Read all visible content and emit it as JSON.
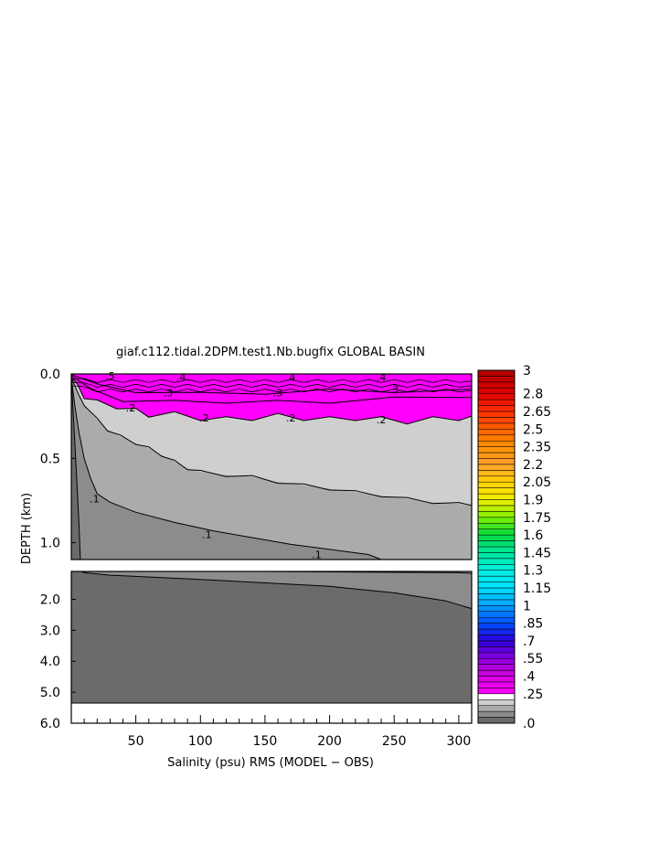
{
  "chart_data": {
    "type": "contour",
    "title": "giaf.c112.tidal.2DPM.test1.Nb.bugfix GLOBAL BASIN",
    "xlabel": "Salinity (psu) RMS (MODEL − OBS)",
    "ylabel": "DEPTH (km)",
    "xlim": [
      0,
      310
    ],
    "x_ticks": [
      50,
      100,
      150,
      200,
      250,
      300
    ],
    "upper_panel": {
      "ylim": [
        0.0,
        1.1
      ],
      "y_ticks": [
        "0.0",
        "0.5",
        "1.0"
      ],
      "y_tick_values": [
        0.0,
        0.5,
        1.0
      ]
    },
    "lower_panel": {
      "ylim": [
        1.1,
        6.0
      ],
      "y_ticks": [
        "2.0",
        "3.0",
        "4.0",
        "5.0",
        "6.0"
      ],
      "y_tick_values": [
        2.0,
        3.0,
        4.0,
        5.0,
        6.0
      ],
      "data_bottom": 5.35
    },
    "contour_labels": [
      {
        "text": ".5",
        "x": 30,
        "y": 0.01
      },
      {
        "text": ".4",
        "x": 85,
        "y": 0.02
      },
      {
        "text": ".3",
        "x": 75,
        "y": 0.11
      },
      {
        "text": ".4",
        "x": 170,
        "y": 0.02
      },
      {
        "text": ".3",
        "x": 160,
        "y": 0.11
      },
      {
        "text": ".4",
        "x": 240,
        "y": 0.02
      },
      {
        "text": ".3",
        "x": 250,
        "y": 0.09
      },
      {
        "text": ".2",
        "x": 46,
        "y": 0.2
      },
      {
        "text": ".2",
        "x": 103,
        "y": 0.26
      },
      {
        "text": ".2",
        "x": 170,
        "y": 0.26
      },
      {
        "text": ".2",
        "x": 240,
        "y": 0.27
      },
      {
        "text": ".1",
        "x": 18,
        "y": 0.74
      },
      {
        "text": ".1",
        "x": 105,
        "y": 0.95
      },
      {
        "text": ".1",
        "x": 190,
        "y": 1.07
      }
    ],
    "contours": {
      "c03": [
        [
          0,
          0.005
        ],
        [
          20,
          0.07
        ],
        [
          50,
          0.1
        ],
        [
          100,
          0.12
        ],
        [
          150,
          0.11
        ],
        [
          200,
          0.1
        ],
        [
          250,
          0.1
        ],
        [
          310,
          0.09
        ]
      ],
      "c025": [
        [
          0,
          0.01
        ],
        [
          15,
          0.1
        ],
        [
          40,
          0.15
        ],
        [
          80,
          0.17
        ],
        [
          120,
          0.16
        ],
        [
          160,
          0.17
        ],
        [
          200,
          0.16
        ],
        [
          250,
          0.15
        ],
        [
          310,
          0.14
        ]
      ],
      "c02": [
        [
          0,
          0.02
        ],
        [
          5,
          0.08
        ],
        [
          10,
          0.13
        ],
        [
          20,
          0.17
        ],
        [
          35,
          0.19
        ],
        [
          50,
          0.22
        ],
        [
          60,
          0.24
        ],
        [
          80,
          0.24
        ],
        [
          100,
          0.26
        ],
        [
          120,
          0.27
        ],
        [
          140,
          0.26
        ],
        [
          160,
          0.25
        ],
        [
          180,
          0.26
        ],
        [
          200,
          0.27
        ],
        [
          220,
          0.26
        ],
        [
          240,
          0.27
        ],
        [
          260,
          0.28
        ],
        [
          280,
          0.27
        ],
        [
          300,
          0.26
        ],
        [
          310,
          0.25
        ]
      ],
      "c015": [
        [
          0,
          0.02
        ],
        [
          5,
          0.12
        ],
        [
          10,
          0.18
        ],
        [
          20,
          0.27
        ],
        [
          28,
          0.33
        ],
        [
          38,
          0.37
        ],
        [
          50,
          0.41
        ],
        [
          60,
          0.44
        ],
        [
          70,
          0.48
        ],
        [
          80,
          0.52
        ],
        [
          90,
          0.56
        ],
        [
          100,
          0.58
        ],
        [
          120,
          0.6
        ],
        [
          140,
          0.61
        ],
        [
          160,
          0.64
        ],
        [
          180,
          0.66
        ],
        [
          200,
          0.68
        ],
        [
          220,
          0.7
        ],
        [
          240,
          0.72
        ],
        [
          260,
          0.74
        ],
        [
          280,
          0.76
        ],
        [
          300,
          0.77
        ],
        [
          310,
          0.78
        ]
      ],
      "c01": [
        [
          0,
          0.02
        ],
        [
          3,
          0.2
        ],
        [
          6,
          0.35
        ],
        [
          10,
          0.5
        ],
        [
          15,
          0.62
        ],
        [
          20,
          0.71
        ],
        [
          30,
          0.76
        ],
        [
          50,
          0.82
        ],
        [
          80,
          0.88
        ],
        [
          110,
          0.93
        ],
        [
          140,
          0.97
        ],
        [
          170,
          1.01
        ],
        [
          200,
          1.04
        ],
        [
          230,
          1.07
        ],
        [
          240,
          1.1
        ]
      ],
      "c005": [
        [
          0,
          0.02
        ],
        [
          2,
          0.3
        ],
        [
          4,
          0.6
        ],
        [
          6,
          0.9
        ],
        [
          7,
          1.1
        ]
      ],
      "deep": [
        [
          8,
          1.1
        ],
        [
          10,
          1.14
        ],
        [
          30,
          1.22
        ],
        [
          70,
          1.3
        ],
        [
          110,
          1.38
        ],
        [
          150,
          1.47
        ],
        [
          200,
          1.58
        ],
        [
          250,
          1.79
        ],
        [
          290,
          2.05
        ],
        [
          310,
          2.3
        ]
      ],
      "deep_upper": [
        [
          15,
          1.1
        ],
        [
          150,
          1.1
        ],
        [
          300,
          1.14
        ],
        [
          310,
          1.16
        ]
      ]
    },
    "colorbar": {
      "labels": [
        "3",
        "2.8",
        "2.65",
        "2.5",
        "2.35",
        "2.2",
        "2.05",
        "1.9",
        "1.75",
        "1.6",
        "1.45",
        "1.3",
        "1.15",
        "1",
        ".85",
        ".7",
        ".55",
        ".4",
        ".25",
        ".0"
      ],
      "label_values": [
        3.0,
        2.8,
        2.65,
        2.5,
        2.35,
        2.2,
        2.05,
        1.9,
        1.75,
        1.6,
        1.45,
        1.3,
        1.15,
        1.0,
        0.85,
        0.7,
        0.55,
        0.4,
        0.25,
        0.0
      ],
      "gray_levels": [
        {
          "min": 0.0,
          "max": 0.05,
          "color": "#6b6b6b"
        },
        {
          "min": 0.05,
          "max": 0.1,
          "color": "#8c8c8c"
        },
        {
          "min": 0.1,
          "max": 0.15,
          "color": "#ababab"
        },
        {
          "min": 0.15,
          "max": 0.2,
          "color": "#cfcfcf"
        }
      ],
      "white_level": {
        "min": 0.2,
        "max": 0.25,
        "color": "#ffffff"
      },
      "color_stops": [
        {
          "v": 0.25,
          "color": "#ff00ff"
        },
        {
          "v": 0.4,
          "color": "#d400dc"
        },
        {
          "v": 0.55,
          "color": "#8a00e0"
        },
        {
          "v": 0.7,
          "color": "#2b00d8"
        },
        {
          "v": 0.85,
          "color": "#0050ff"
        },
        {
          "v": 1.0,
          "color": "#00a0ff"
        },
        {
          "v": 1.15,
          "color": "#00e0ff"
        },
        {
          "v": 1.3,
          "color": "#00f0e0"
        },
        {
          "v": 1.45,
          "color": "#00e8a0"
        },
        {
          "v": 1.6,
          "color": "#00d840"
        },
        {
          "v": 1.75,
          "color": "#80f000"
        },
        {
          "v": 1.9,
          "color": "#f0f000"
        },
        {
          "v": 2.05,
          "color": "#ffd000"
        },
        {
          "v": 2.2,
          "color": "#ffa030"
        },
        {
          "v": 2.35,
          "color": "#ff9000"
        },
        {
          "v": 2.5,
          "color": "#ff6000"
        },
        {
          "v": 2.65,
          "color": "#ff3000"
        },
        {
          "v": 2.8,
          "color": "#e00000"
        },
        {
          "v": 3.0,
          "color": "#b00000"
        }
      ],
      "step": 0.05
    },
    "fill_colors": {
      "magenta": "#ff00ff",
      "light_gray": "#cfcfcf",
      "mid_gray": "#ababab",
      "dark_gray": "#8c8c8c",
      "darkest_gray": "#6b6b6b"
    }
  }
}
